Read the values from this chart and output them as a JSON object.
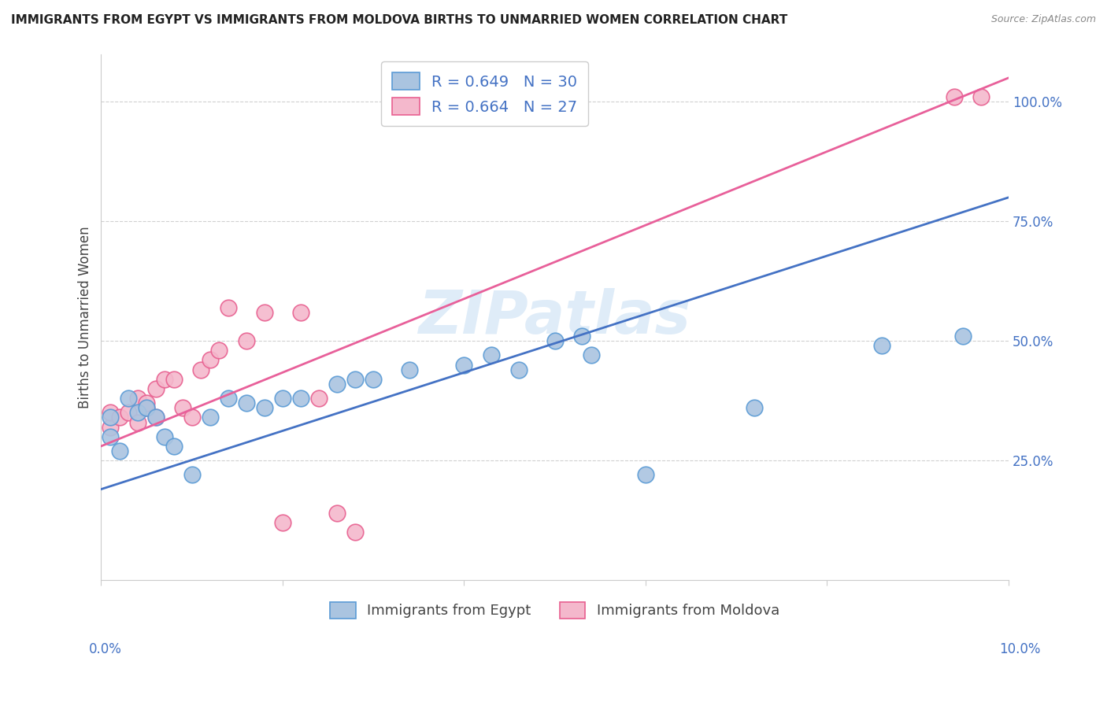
{
  "title": "IMMIGRANTS FROM EGYPT VS IMMIGRANTS FROM MOLDOVA BIRTHS TO UNMARRIED WOMEN CORRELATION CHART",
  "source": "Source: ZipAtlas.com",
  "ylabel": "Births to Unmarried Women",
  "xlim": [
    0.0,
    0.1
  ],
  "ylim": [
    0.0,
    1.1
  ],
  "yticks": [
    0.25,
    0.5,
    0.75,
    1.0
  ],
  "ytick_labels": [
    "25.0%",
    "50.0%",
    "75.0%",
    "100.0%"
  ],
  "watermark": "ZIPatlas",
  "egypt_color": "#aac4e0",
  "egypt_edge_color": "#5b9bd5",
  "moldova_color": "#f4b8cc",
  "moldova_edge_color": "#e86090",
  "egypt_line_color": "#4472c4",
  "moldova_line_color": "#e8609a",
  "legend_egypt_label": "R = 0.649   N = 30",
  "legend_moldova_label": "R = 0.664   N = 27",
  "legend_blue_color": "#4472c4",
  "bottom_legend_egypt": "Immigrants from Egypt",
  "bottom_legend_moldova": "Immigrants from Moldova",
  "egypt_x": [
    0.001,
    0.001,
    0.002,
    0.003,
    0.004,
    0.005,
    0.006,
    0.007,
    0.008,
    0.01,
    0.012,
    0.014,
    0.016,
    0.018,
    0.02,
    0.022,
    0.026,
    0.028,
    0.03,
    0.034,
    0.04,
    0.043,
    0.046,
    0.05,
    0.053,
    0.054,
    0.06,
    0.072,
    0.086,
    0.095
  ],
  "egypt_y": [
    0.34,
    0.3,
    0.27,
    0.38,
    0.35,
    0.36,
    0.34,
    0.3,
    0.28,
    0.22,
    0.34,
    0.38,
    0.37,
    0.36,
    0.38,
    0.38,
    0.41,
    0.42,
    0.42,
    0.44,
    0.45,
    0.47,
    0.44,
    0.5,
    0.51,
    0.47,
    0.22,
    0.36,
    0.49,
    0.51
  ],
  "moldova_x": [
    0.001,
    0.001,
    0.002,
    0.003,
    0.004,
    0.004,
    0.005,
    0.005,
    0.006,
    0.006,
    0.007,
    0.008,
    0.009,
    0.01,
    0.011,
    0.012,
    0.013,
    0.014,
    0.016,
    0.018,
    0.02,
    0.022,
    0.024,
    0.026,
    0.028,
    0.094,
    0.097
  ],
  "moldova_y": [
    0.32,
    0.35,
    0.34,
    0.35,
    0.33,
    0.38,
    0.36,
    0.37,
    0.34,
    0.4,
    0.42,
    0.42,
    0.36,
    0.34,
    0.44,
    0.46,
    0.48,
    0.57,
    0.5,
    0.56,
    0.12,
    0.56,
    0.38,
    0.14,
    0.1,
    1.01,
    1.01
  ],
  "egypt_line_x": [
    0.0,
    0.1
  ],
  "egypt_line_y": [
    0.19,
    0.8
  ],
  "moldova_line_x": [
    0.0,
    0.1
  ],
  "moldova_line_y": [
    0.28,
    1.05
  ]
}
